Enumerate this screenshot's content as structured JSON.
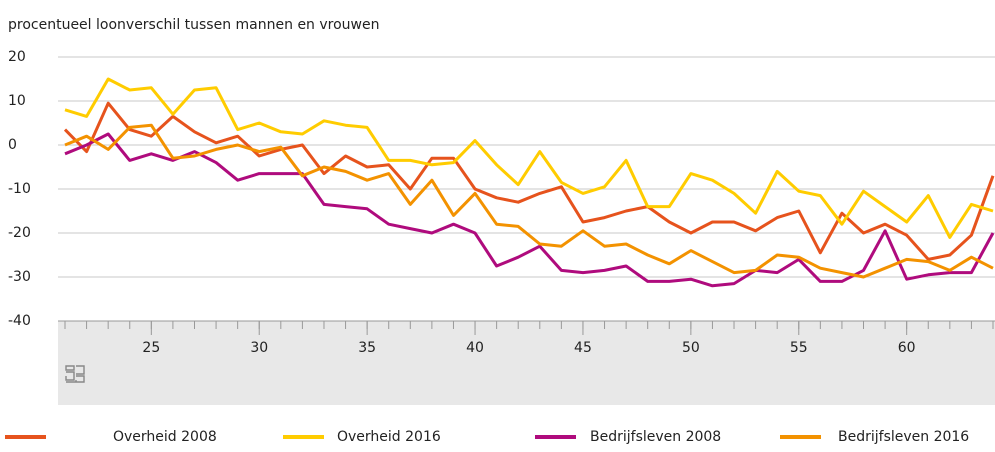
{
  "chart_data": {
    "type": "line",
    "title": "procentueel loonverschil tussen mannen en vrouwen",
    "x": [
      21,
      22,
      23,
      24,
      25,
      26,
      27,
      28,
      29,
      30,
      31,
      32,
      33,
      34,
      35,
      36,
      37,
      38,
      39,
      40,
      41,
      42,
      43,
      44,
      45,
      46,
      47,
      48,
      49,
      50,
      51,
      52,
      53,
      54,
      55,
      56,
      57,
      58,
      59,
      60,
      61,
      62,
      63,
      64
    ],
    "xlim": [
      21,
      64
    ],
    "xticks": [
      25,
      30,
      35,
      40,
      45,
      50,
      55,
      60
    ],
    "ylim": [
      -40,
      20
    ],
    "yticks": [
      -40,
      -30,
      -20,
      -10,
      0,
      10,
      20
    ],
    "grid": true,
    "series": [
      {
        "name": "Overheid 2008",
        "color": "#e6531d",
        "values": [
          3.5,
          -1.5,
          9.5,
          3.5,
          2,
          6.5,
          3,
          0.5,
          2,
          -2.5,
          -1,
          0,
          -6.5,
          -2.5,
          -5,
          -4.5,
          -10,
          -3,
          -3,
          -10,
          -12,
          -13,
          -11,
          -9.5,
          -17.5,
          -16.5,
          -15,
          -14,
          -17.5,
          -20,
          -17.5,
          -17.5,
          -19.5,
          -16.5,
          -15,
          -24.5,
          -15.5,
          -20,
          -18,
          -20.5,
          -26,
          -25,
          -20.5,
          -7
        ]
      },
      {
        "name": "Overheid 2016",
        "color": "#ffcc00",
        "values": [
          8,
          6.5,
          15,
          12.5,
          13,
          7,
          12.5,
          13,
          3.5,
          5,
          3,
          2.5,
          5.5,
          4.5,
          4,
          -3.5,
          -3.5,
          -4.5,
          -4,
          1,
          -4.5,
          -9,
          -1.5,
          -8.5,
          -11,
          -9.5,
          -3.5,
          -14,
          -14,
          -6.5,
          -8,
          -11,
          -15.5,
          -6,
          -10.5,
          -11.5,
          -18,
          -10.5,
          -14,
          -17.5,
          -11.5,
          -21,
          -13.5,
          -15
        ]
      },
      {
        "name": "Bedrijfsleven 2008",
        "color": "#af0b7d",
        "values": [
          -2,
          0,
          2.5,
          -3.5,
          -2,
          -3.5,
          -1.5,
          -4,
          -8,
          -6.5,
          -6.5,
          -6.5,
          -13.5,
          -14,
          -14.5,
          -18,
          -19,
          -20,
          -18,
          -20,
          -27.5,
          -25.5,
          -23,
          -28.5,
          -29,
          -28.5,
          -27.5,
          -31,
          -31,
          -30.5,
          -32,
          -31.5,
          -28.5,
          -29,
          -26,
          -31,
          -31,
          -28.5,
          -19.5,
          -30.5,
          -29.5,
          -29,
          -29,
          -20
        ]
      },
      {
        "name": "Bedrijfsleven 2016",
        "color": "#f39200",
        "values": [
          0,
          2,
          -1,
          4,
          4.5,
          -3,
          -2.5,
          -1,
          0,
          -1.5,
          -0.5,
          -7,
          -5,
          -6,
          -8,
          -6.5,
          -13.5,
          -8,
          -16,
          -11,
          -18,
          -18.5,
          -22.5,
          -23,
          -19.5,
          -23,
          -22.5,
          -25,
          -27,
          -24,
          -26.5,
          -29,
          -28.5,
          -25,
          -25.5,
          -28,
          -29,
          -30,
          -28,
          -26,
          -26.5,
          -28.5,
          -25.5,
          -28
        ]
      }
    ]
  }
}
